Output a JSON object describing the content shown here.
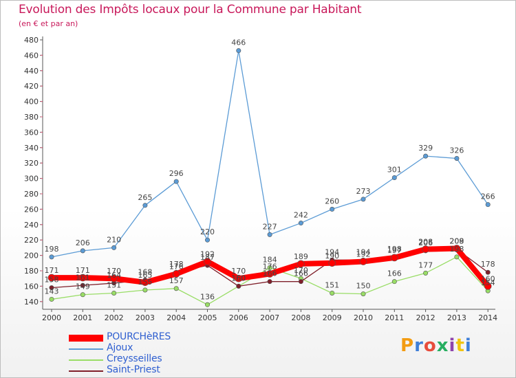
{
  "title": "Evolution des Impôts locaux pour la Commune par Habitant",
  "subtitle": "(en € et par an)",
  "logo": {
    "text": "Proxiti",
    "colors": [
      "#f39c12",
      "#3f7fd8",
      "#e74c3c",
      "#27ae60",
      "#8e44ad",
      "#f1c40f",
      "#3f7fd8"
    ]
  },
  "chart_data": {
    "type": "line",
    "title": "Evolution des Impôts locaux pour la Commune par Habitant",
    "subtitle": "(en € et par an)",
    "categories": [
      "2000",
      "2001",
      "2002",
      "2003",
      "2004",
      "2005",
      "2006",
      "2007",
      "2008",
      "2009",
      "2010",
      "2011",
      "2012",
      "2013",
      "2014"
    ],
    "ylim": [
      130,
      480
    ],
    "yticks": [
      140,
      160,
      180,
      200,
      220,
      240,
      260,
      280,
      300,
      320,
      340,
      360,
      380,
      400,
      420,
      440,
      460,
      480
    ],
    "grid": false,
    "legend_position": "bottom-left",
    "series": [
      {
        "name": "POURCHèRES",
        "color": "#ff0000",
        "values": [
          171,
          171,
          170,
          165,
          176,
          192,
          170,
          176,
          189,
          190,
          192,
          197,
          208,
          209,
          160
        ]
      },
      {
        "name": "Ajoux",
        "color": "#5b9bd5",
        "values": [
          198,
          206,
          210,
          265,
          296,
          220,
          466,
          227,
          242,
          260,
          273,
          301,
          329,
          326,
          266
        ]
      },
      {
        "name": "Creysseilles",
        "color": "#99dd66",
        "values": [
          143,
          149,
          151,
          155,
          157,
          136,
          160,
          184,
          170,
          151,
          150,
          166,
          177,
          198,
          154
        ]
      },
      {
        "name": "Saint-Priest",
        "color": "#7f1f2a",
        "values": [
          158,
          161,
          164,
          168,
          178,
          187,
          160,
          166,
          166,
          194,
          194,
          198,
          206,
          208,
          178
        ]
      }
    ]
  }
}
